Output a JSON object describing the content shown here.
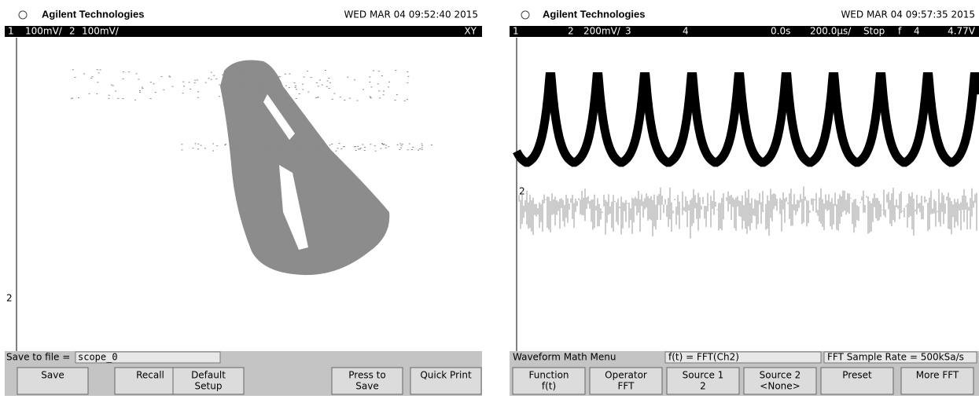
{
  "left_screen": {
    "header": {
      "brand": "Agilent Technologies",
      "timestamp": "WED MAR 04 09:52:40 2015"
    },
    "status": {
      "ch1": "1",
      "ch1_scale": "100mV/",
      "ch2": "2",
      "ch2_scale": "100mV/",
      "mode": "XY"
    },
    "marker": "2",
    "menu": {
      "label": "Save to file =",
      "value": "scope_0"
    },
    "softkeys": [
      [
        "Save"
      ],
      [
        "Recall"
      ],
      [
        "Default",
        "Setup"
      ],
      [
        "Press to",
        "Save"
      ],
      [
        "Quick Print"
      ]
    ]
  },
  "right_screen": {
    "header": {
      "brand": "Agilent Technologies",
      "timestamp": "WED MAR 04 09:57:35 2015"
    },
    "status": {
      "ch1": "1",
      "ch2": "2",
      "ch2_scale": "200mV/",
      "ch3": "3",
      "ch4": "4",
      "delay": "0.0s",
      "timebase": "200.0µs/",
      "run_state": "Stop",
      "trigger_slope": "f",
      "trigger_source": "4",
      "trigger_level": "4.77V"
    },
    "marker": "2",
    "menu": {
      "title": "Waveform Math Menu",
      "function": "f(t) = FFT(Ch2)",
      "sample_rate": "FFT Sample Rate = 500kSa/s"
    },
    "softkeys": [
      [
        "Function",
        "f(t)"
      ],
      [
        "Operator",
        "FFT"
      ],
      [
        "Source 1",
        "2"
      ],
      [
        "Source 2",
        "<None>"
      ],
      [
        "Preset"
      ],
      [
        "More FFT"
      ]
    ]
  }
}
